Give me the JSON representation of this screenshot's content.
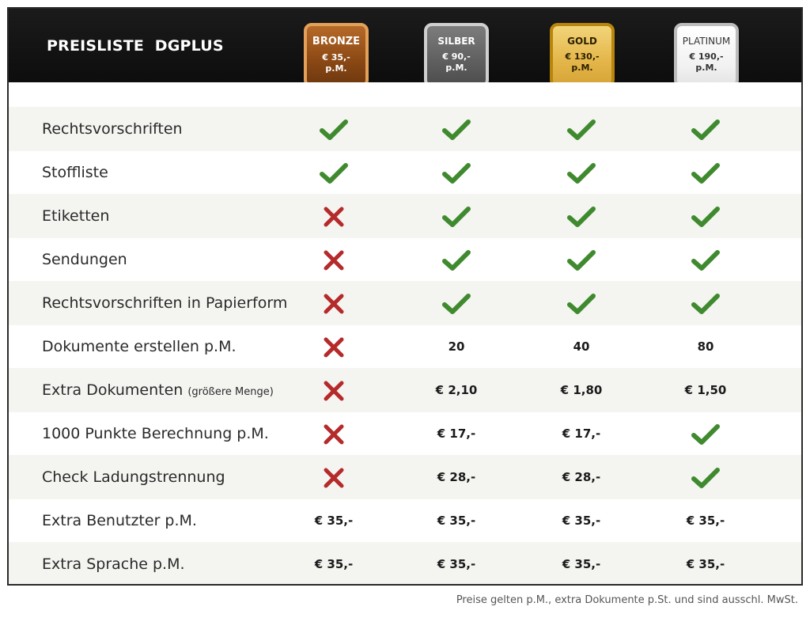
{
  "title": "PREISLISTE  DGPLUS",
  "tiers": [
    {
      "name": "BRONZE",
      "price": "€ 35,- p.M."
    },
    {
      "name": "SILBER",
      "price": "€ 90,- p.M."
    },
    {
      "name": "GOLD",
      "price": "€ 130,- p.M."
    },
    {
      "name": "PLATINUM",
      "price": "€ 190,- p.M."
    }
  ],
  "rows": [
    {
      "label": "Rechtsvorschriften",
      "note": "",
      "cells": [
        {
          "type": "check",
          "value": ""
        },
        {
          "type": "check",
          "value": ""
        },
        {
          "type": "check",
          "value": ""
        },
        {
          "type": "check",
          "value": ""
        }
      ]
    },
    {
      "label": "Stoffliste",
      "note": "",
      "cells": [
        {
          "type": "check",
          "value": ""
        },
        {
          "type": "check",
          "value": ""
        },
        {
          "type": "check",
          "value": ""
        },
        {
          "type": "check",
          "value": ""
        }
      ]
    },
    {
      "label": "Etiketten",
      "note": "",
      "cells": [
        {
          "type": "cross",
          "value": ""
        },
        {
          "type": "check",
          "value": ""
        },
        {
          "type": "check",
          "value": ""
        },
        {
          "type": "check",
          "value": ""
        }
      ]
    },
    {
      "label": "Sendungen",
      "note": "",
      "cells": [
        {
          "type": "cross",
          "value": ""
        },
        {
          "type": "check",
          "value": ""
        },
        {
          "type": "check",
          "value": ""
        },
        {
          "type": "check",
          "value": ""
        }
      ]
    },
    {
      "label": "Rechtsvorschriften in Papierform",
      "note": "",
      "cells": [
        {
          "type": "cross",
          "value": ""
        },
        {
          "type": "check",
          "value": ""
        },
        {
          "type": "check",
          "value": ""
        },
        {
          "type": "check",
          "value": ""
        }
      ]
    },
    {
      "label": "Dokumente erstellen p.M.",
      "note": "",
      "cells": [
        {
          "type": "cross",
          "value": ""
        },
        {
          "type": "text",
          "value": "20"
        },
        {
          "type": "text",
          "value": "40"
        },
        {
          "type": "text",
          "value": "80"
        }
      ]
    },
    {
      "label": "Extra Dokumenten",
      "note": "(größere Menge)",
      "cells": [
        {
          "type": "cross",
          "value": ""
        },
        {
          "type": "text",
          "value": "€ 2,10"
        },
        {
          "type": "text",
          "value": "€ 1,80"
        },
        {
          "type": "text",
          "value": "€ 1,50"
        }
      ]
    },
    {
      "label": "1000 Punkte Berechnung p.M.",
      "note": "",
      "cells": [
        {
          "type": "cross",
          "value": ""
        },
        {
          "type": "text",
          "value": "€ 17,-"
        },
        {
          "type": "text",
          "value": "€ 17,-"
        },
        {
          "type": "check",
          "value": ""
        }
      ]
    },
    {
      "label": "Check Ladungstrennung",
      "note": "",
      "cells": [
        {
          "type": "cross",
          "value": ""
        },
        {
          "type": "text",
          "value": "€ 28,-"
        },
        {
          "type": "text",
          "value": "€ 28,-"
        },
        {
          "type": "check",
          "value": ""
        }
      ]
    },
    {
      "label": "Extra Benutzter p.M.",
      "note": "",
      "cells": [
        {
          "type": "text",
          "value": "€ 35,-"
        },
        {
          "type": "text",
          "value": "€ 35,-"
        },
        {
          "type": "text",
          "value": "€ 35,-"
        },
        {
          "type": "text",
          "value": "€ 35,-"
        }
      ]
    },
    {
      "label": "Extra Sprache p.M.",
      "note": "",
      "cells": [
        {
          "type": "text",
          "value": "€ 35,-"
        },
        {
          "type": "text",
          "value": "€ 35,-"
        },
        {
          "type": "text",
          "value": "€ 35,-"
        },
        {
          "type": "text",
          "value": "€ 35,-"
        }
      ]
    }
  ],
  "footnote": "Preise gelten p.M., extra Dokumente p.St. und sind ausschl. MwSt.",
  "icons": {
    "check": "check-icon",
    "cross": "cross-icon"
  },
  "colors": {
    "check": "#3f8a2e",
    "cross": "#b52a2a",
    "header": "#111111"
  }
}
